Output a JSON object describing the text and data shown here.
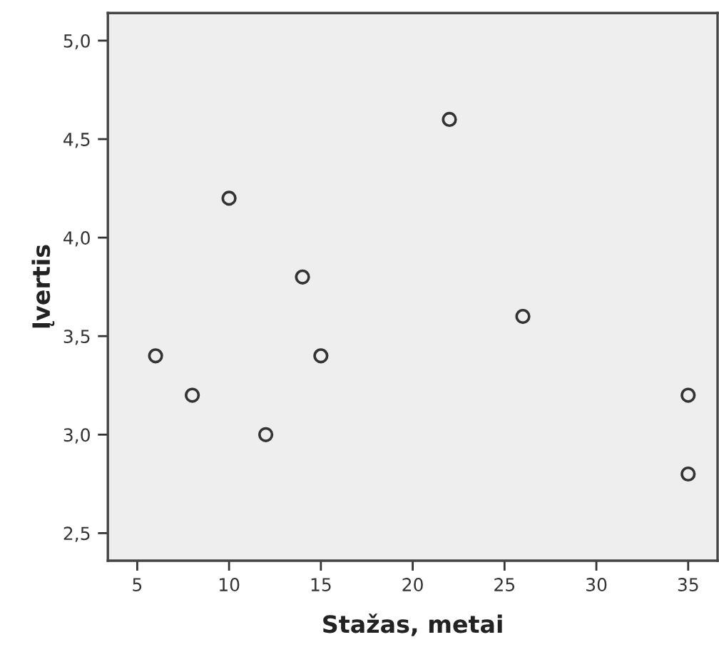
{
  "chart_data": {
    "type": "scatter",
    "xlabel": "Stažas, metai",
    "ylabel": "Įvertis",
    "x": [
      6,
      8,
      10,
      12,
      14,
      15,
      22,
      26,
      35,
      35
    ],
    "values": [
      3.4,
      3.2,
      4.2,
      3.0,
      3.8,
      3.4,
      4.6,
      3.6,
      3.2,
      2.8
    ],
    "color": "#333333",
    "marker": "circle",
    "grid": false,
    "legend": false,
    "xlim": [
      3.4,
      36.6
    ],
    "xticks": [
      5,
      10,
      15,
      20,
      25,
      30,
      35
    ],
    "ylim": [
      2.36,
      5.14
    ],
    "yticks": [
      {
        "value": 2.5,
        "label": "2,5"
      },
      {
        "value": 3.0,
        "label": "3,0"
      },
      {
        "value": 3.5,
        "label": "3,5"
      },
      {
        "value": 4.0,
        "label": "4,0"
      },
      {
        "value": 4.5,
        "label": "4,5"
      },
      {
        "value": 5.0,
        "label": "5,0"
      }
    ]
  }
}
